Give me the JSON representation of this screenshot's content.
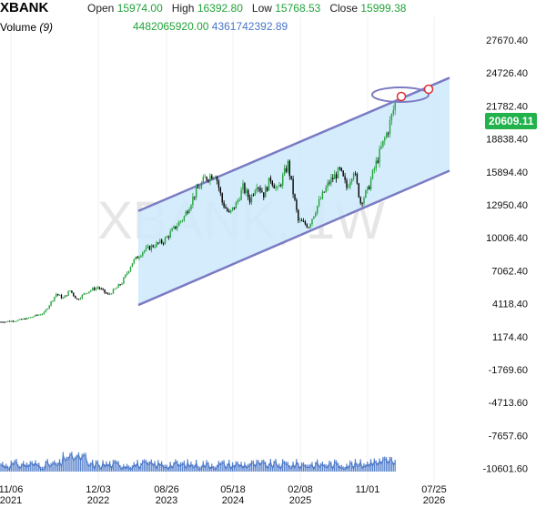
{
  "header": {
    "symbol": "XBANK",
    "open_label": "Open",
    "open": "15974.00",
    "high_label": "High",
    "high": "16392.80",
    "low_label": "Low",
    "low": "15768.53",
    "close_label": "Close",
    "close": "15999.38",
    "volume_label": "Volume",
    "volume_period": "(9)",
    "volume_value": "4482065920.00",
    "volume_ma": "4361742392.89"
  },
  "watermark": "XBANK, 1W",
  "last_price": "20609.11",
  "colors": {
    "up": "#22a33a",
    "down": "#000000",
    "channel_line": "#7b7bc4",
    "channel_fill": "#cde9fb",
    "volume_bar": "#3d6fc4",
    "ma_line": "#4a76c9",
    "badge": "#22b24c"
  },
  "chart_data": {
    "type": "candlestick",
    "y_ticks": [
      "27670.40",
      "24726.40",
      "21782.40",
      "18838.40",
      "15894.40",
      "12950.40",
      "10006.40",
      "7062.40",
      "4118.40",
      "1174.40",
      "-1769.60",
      "-4713.60",
      "-7657.60",
      "-10601.60"
    ],
    "x_ticks": [
      {
        "line1": "11/06",
        "line2": "2021"
      },
      {
        "line1": "12/03",
        "line2": "2022"
      },
      {
        "line1": "08/26",
        "line2": "2023"
      },
      {
        "line1": "05/18",
        "line2": "2024"
      },
      {
        "line1": "02/08",
        "line2": "2025"
      },
      {
        "line1": "11/01",
        "line2": ""
      },
      {
        "line1": "07/25",
        "line2": "2026"
      }
    ],
    "ylim": [
      -11500,
      29000
    ],
    "price_path": [
      [
        0,
        2500
      ],
      [
        8,
        2600
      ],
      [
        15,
        2800
      ],
      [
        25,
        3300
      ],
      [
        32,
        5000
      ],
      [
        36,
        4600
      ],
      [
        40,
        5300
      ],
      [
        44,
        4500
      ],
      [
        50,
        5200
      ],
      [
        56,
        5600
      ],
      [
        62,
        4900
      ],
      [
        66,
        5400
      ],
      [
        70,
        6000
      ],
      [
        76,
        7800
      ],
      [
        82,
        8800
      ],
      [
        88,
        9300
      ],
      [
        94,
        9700
      ],
      [
        100,
        10800
      ],
      [
        106,
        11900
      ],
      [
        112,
        13900
      ],
      [
        118,
        15300
      ],
      [
        124,
        15800
      ],
      [
        128,
        13200
      ],
      [
        132,
        12100
      ],
      [
        136,
        13000
      ],
      [
        140,
        14500
      ],
      [
        144,
        13400
      ],
      [
        148,
        14900
      ],
      [
        152,
        13900
      ],
      [
        156,
        15300
      ],
      [
        160,
        14200
      ],
      [
        166,
        16600
      ],
      [
        172,
        11500
      ],
      [
        178,
        11100
      ],
      [
        184,
        13200
      ],
      [
        190,
        15000
      ],
      [
        196,
        16000
      ],
      [
        200,
        14500
      ],
      [
        204,
        16100
      ],
      [
        208,
        13200
      ],
      [
        212,
        14200
      ],
      [
        216,
        16200
      ],
      [
        220,
        18000
      ],
      [
        224,
        19700
      ],
      [
        228,
        22000
      ]
    ],
    "channel": {
      "upper": {
        "start": [
          80,
          12400
        ],
        "end": [
          260,
          24300
        ]
      },
      "lower": {
        "start": [
          80,
          4000
        ],
        "end": [
          260,
          16000
        ]
      }
    }
  }
}
